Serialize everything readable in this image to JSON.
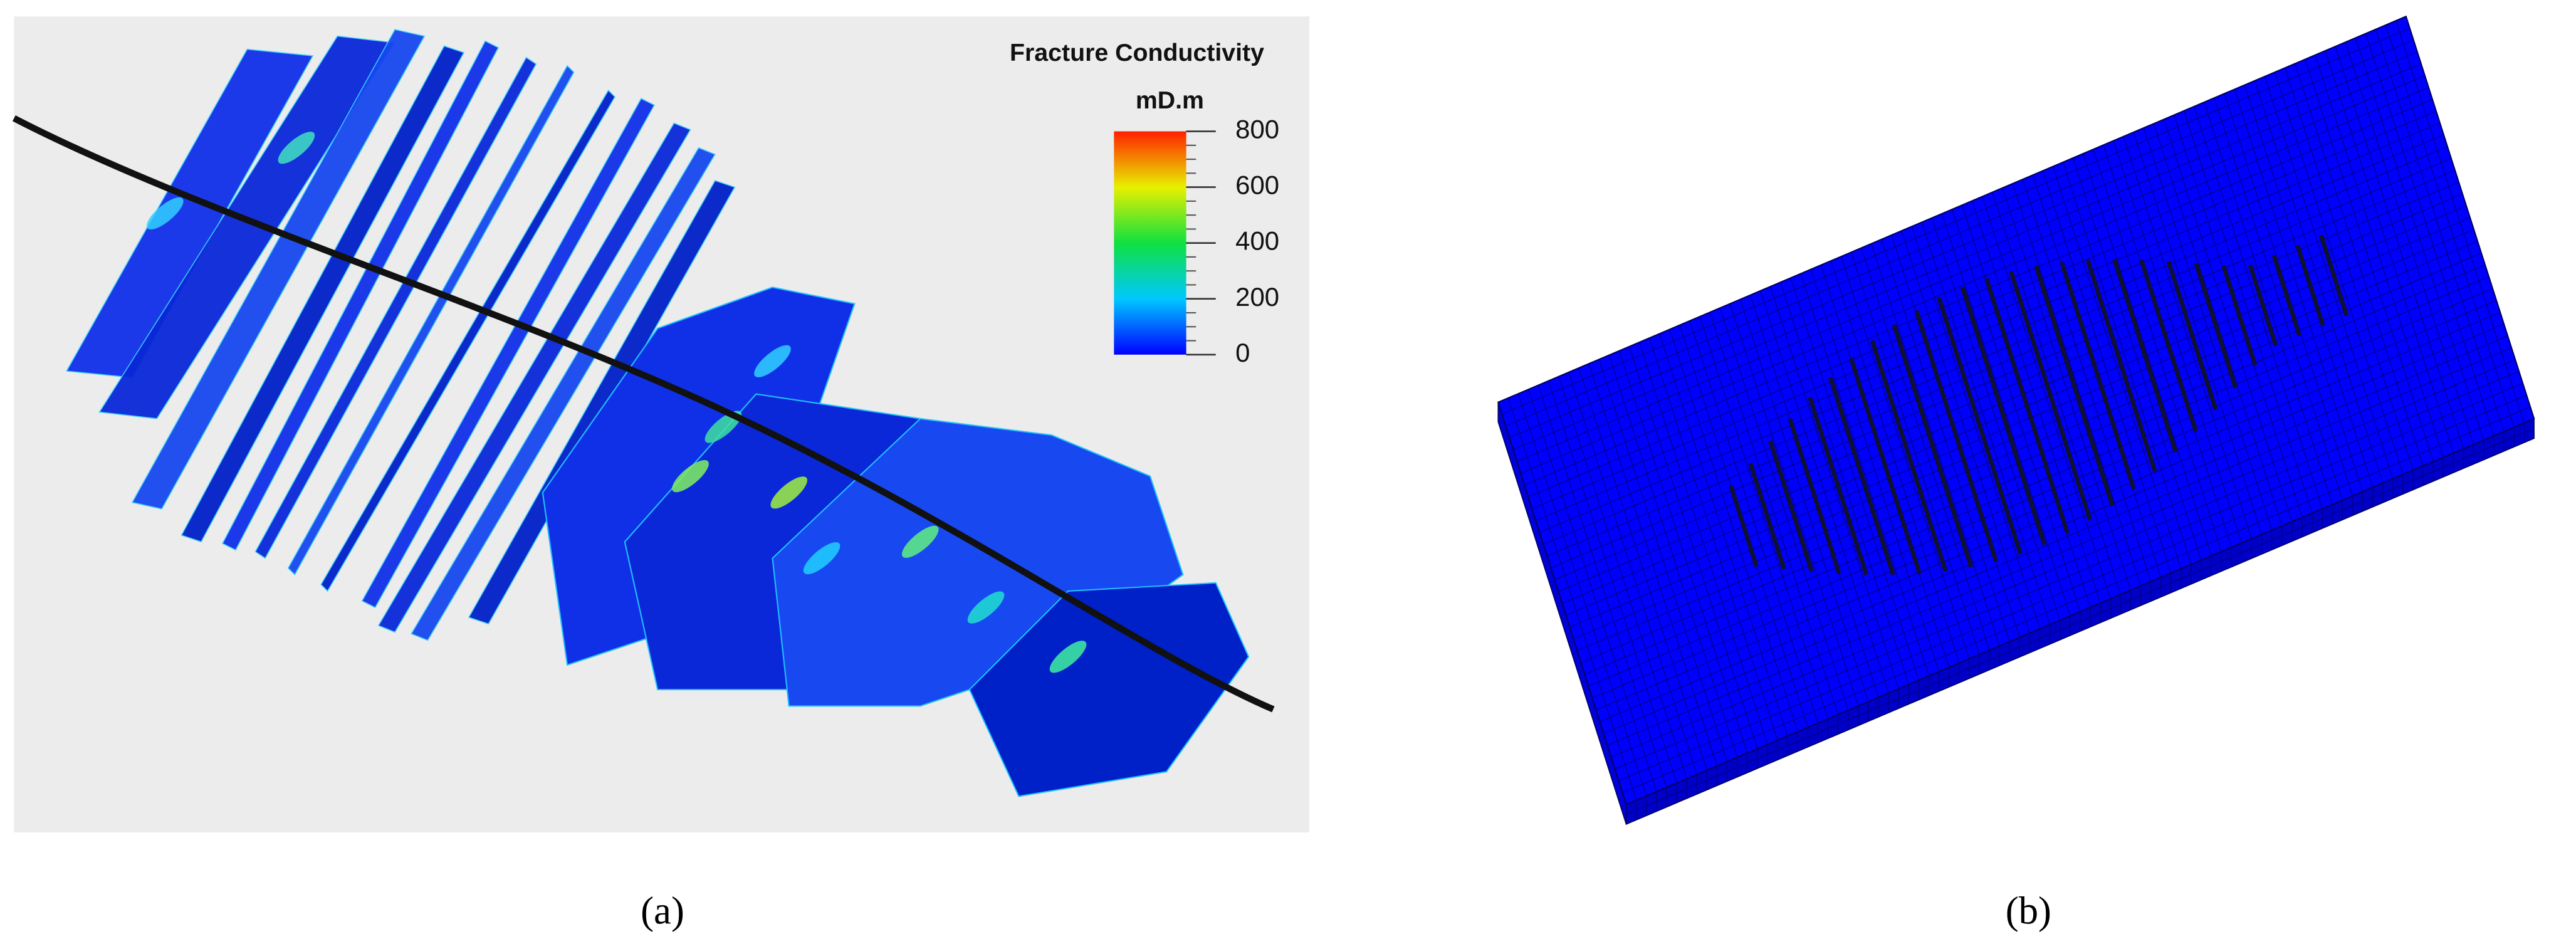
{
  "panels": [
    {
      "label": "(a)",
      "colorbar": {
        "title": "Fracture Conductivity",
        "unit": "mD.m",
        "range": [
          0,
          800
        ],
        "ticks": [
          0,
          200,
          400,
          600,
          800
        ]
      }
    },
    {
      "label": "(b)"
    }
  ]
}
